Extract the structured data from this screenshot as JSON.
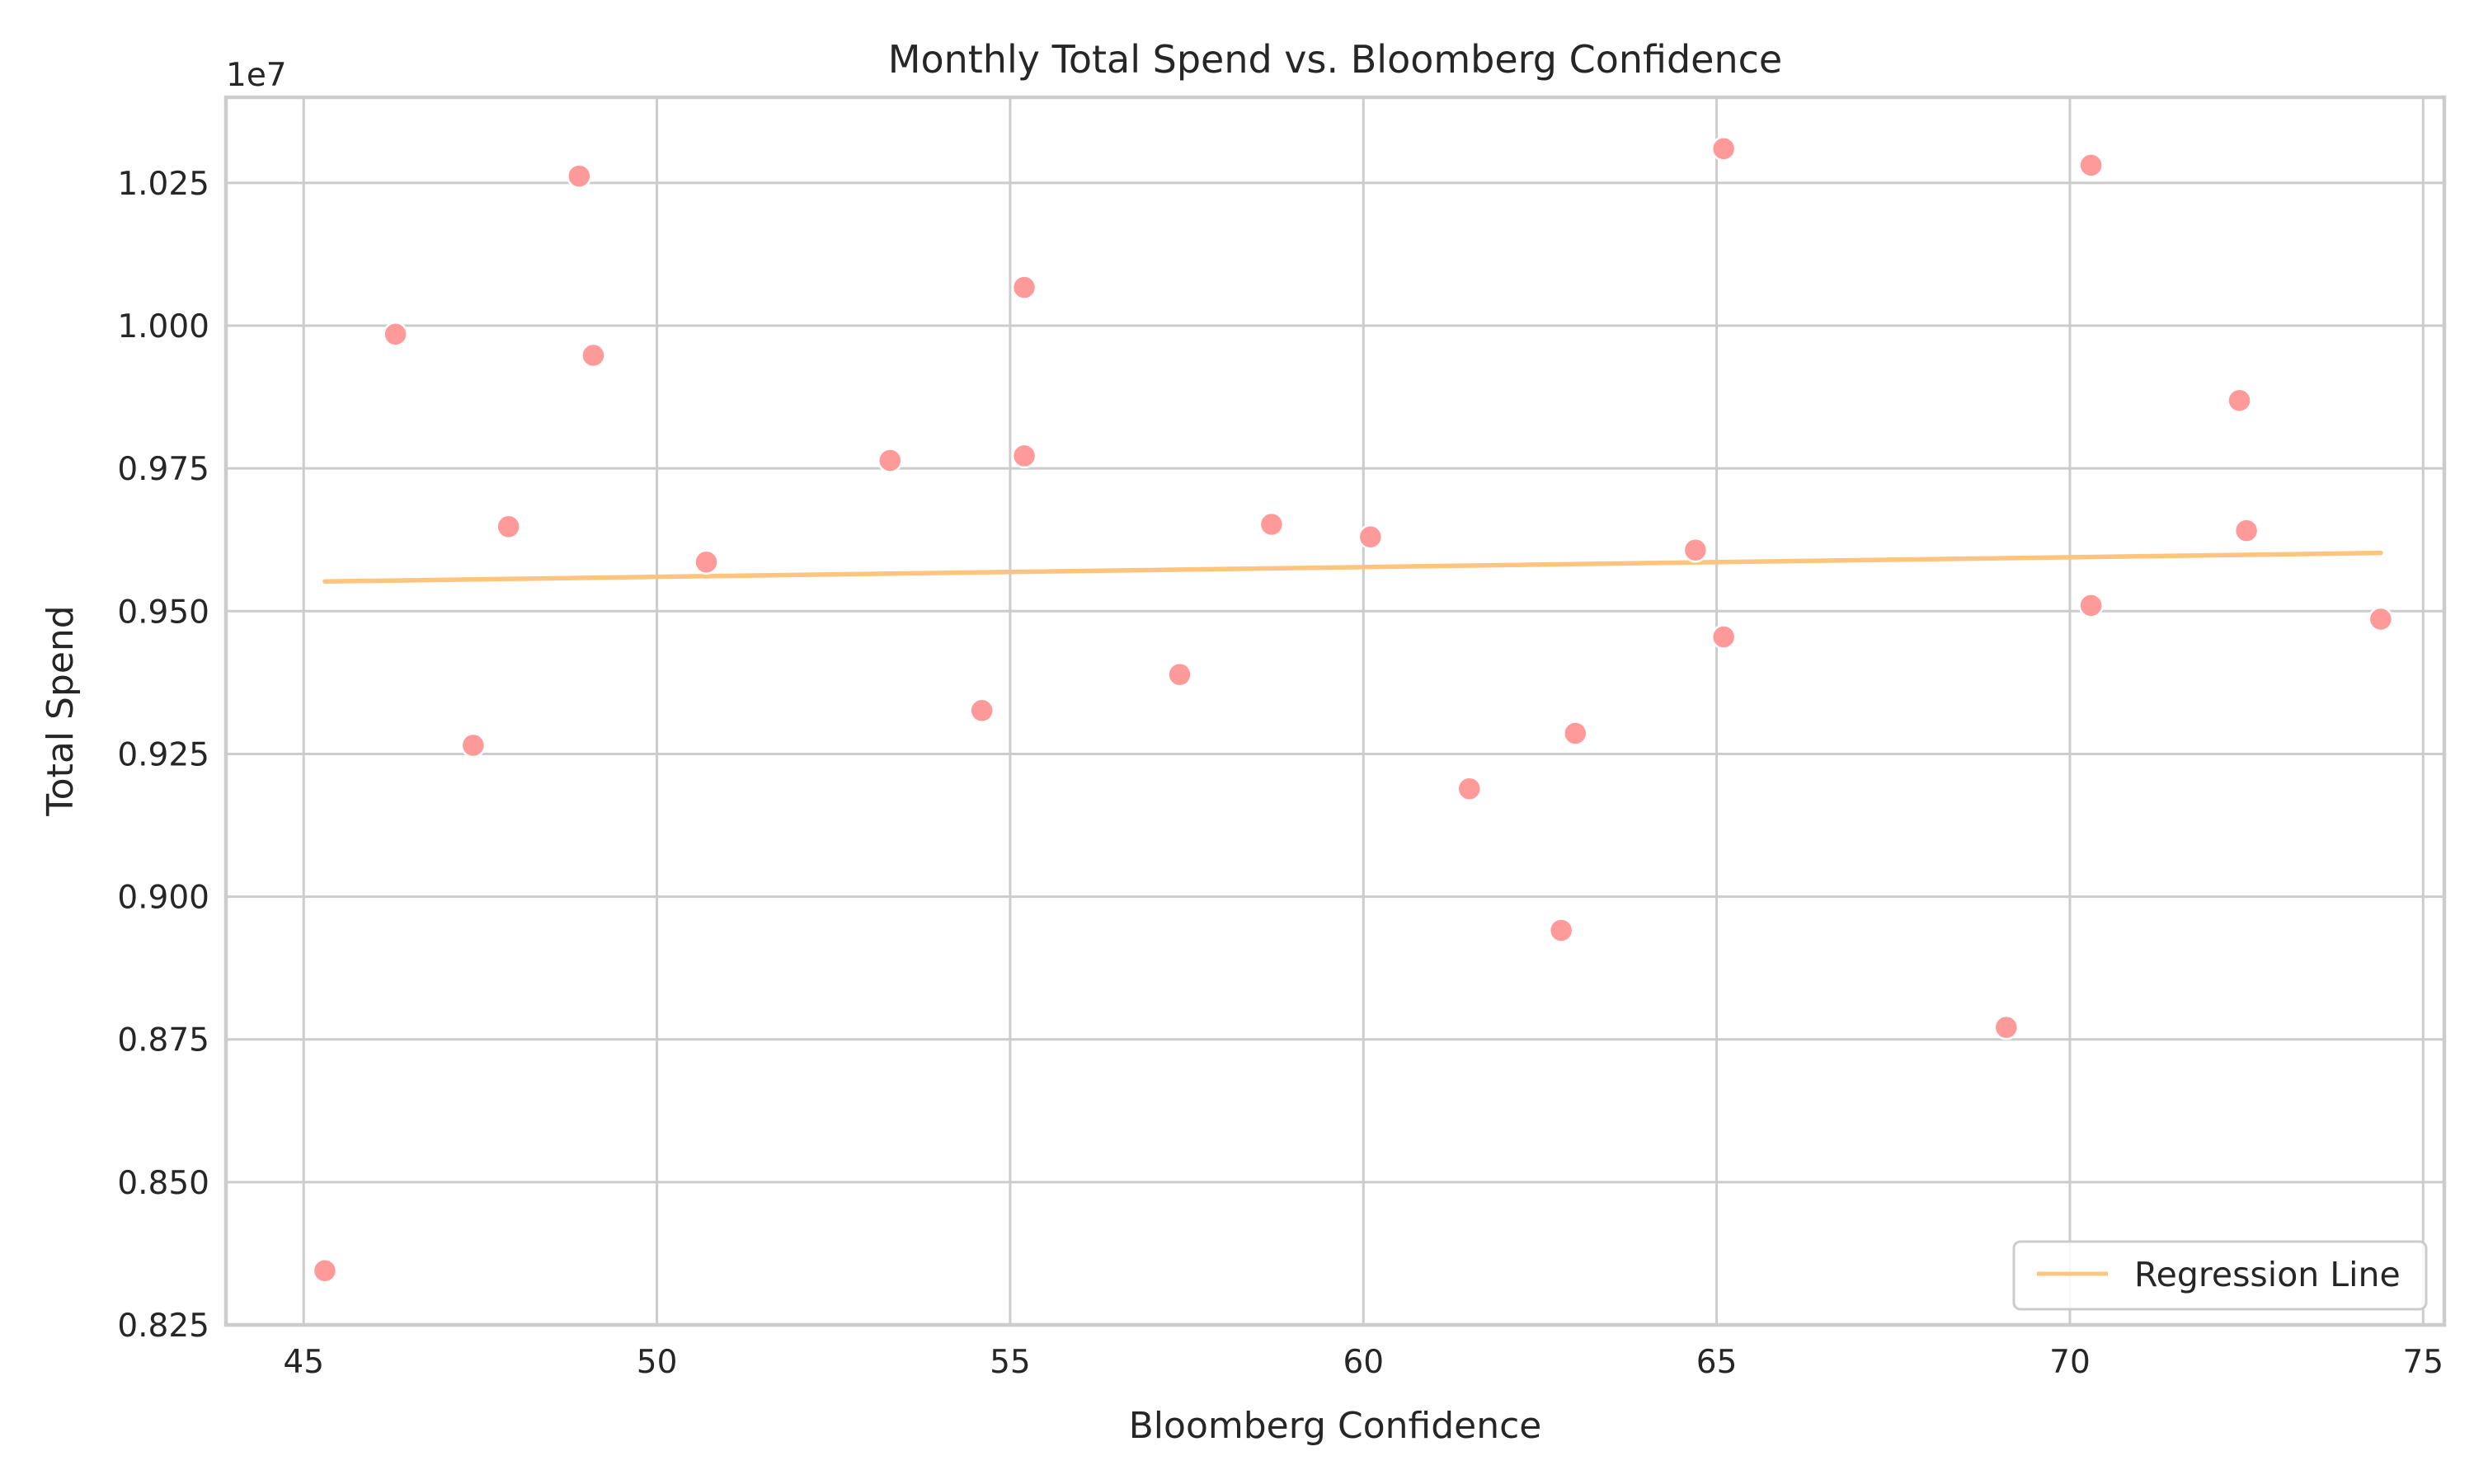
{
  "chart_data": {
    "type": "scatter",
    "title": "Monthly Total Spend vs. Bloomberg Confidence",
    "xlabel": "Bloomberg Confidence",
    "ylabel": "Total Spend",
    "y_offset_label": "1e7",
    "xlim": [
      43.9,
      75.3
    ],
    "ylim": [
      0.825,
      1.04
    ],
    "x_ticks": [
      45,
      50,
      55,
      60,
      65,
      70,
      75
    ],
    "x_tick_labels": [
      "45",
      "50",
      "55",
      "60",
      "65",
      "70",
      "75"
    ],
    "y_ticks": [
      0.825,
      0.85,
      0.875,
      0.9,
      0.925,
      0.95,
      0.975,
      1.0,
      1.025
    ],
    "y_tick_labels": [
      "0.825",
      "0.850",
      "0.875",
      "0.900",
      "0.925",
      "0.950",
      "0.975",
      "1.000",
      "1.025"
    ],
    "grid": true,
    "legend_position": "bottom-right",
    "series": [
      {
        "kind": "scatter",
        "color": "#ff9a9a",
        "points": [
          {
            "x": 45.3,
            "y": 0.8345
          },
          {
            "x": 46.3,
            "y": 0.9985
          },
          {
            "x": 47.4,
            "y": 0.9265
          },
          {
            "x": 47.9,
            "y": 0.9648
          },
          {
            "x": 48.9,
            "y": 1.0262
          },
          {
            "x": 49.1,
            "y": 0.9948
          },
          {
            "x": 50.7,
            "y": 0.9586
          },
          {
            "x": 53.3,
            "y": 0.9764
          },
          {
            "x": 54.6,
            "y": 0.9326
          },
          {
            "x": 55.2,
            "y": 0.9772
          },
          {
            "x": 55.2,
            "y": 1.0067
          },
          {
            "x": 57.4,
            "y": 0.9389
          },
          {
            "x": 58.7,
            "y": 0.9652
          },
          {
            "x": 60.1,
            "y": 0.963
          },
          {
            "x": 61.5,
            "y": 0.9189
          },
          {
            "x": 62.8,
            "y": 0.8941
          },
          {
            "x": 63.0,
            "y": 0.9286
          },
          {
            "x": 64.7,
            "y": 0.9607
          },
          {
            "x": 65.1,
            "y": 1.031
          },
          {
            "x": 65.1,
            "y": 0.9455
          },
          {
            "x": 69.1,
            "y": 0.8771
          },
          {
            "x": 70.3,
            "y": 0.951
          },
          {
            "x": 70.3,
            "y": 1.0281
          },
          {
            "x": 72.4,
            "y": 0.9869
          },
          {
            "x": 72.5,
            "y": 0.9641
          },
          {
            "x": 74.4,
            "y": 0.9486
          }
        ]
      },
      {
        "kind": "line",
        "name": "Regression Line",
        "color": "#ffc47e",
        "points": [
          {
            "x": 45.3,
            "y": 0.9552
          },
          {
            "x": 74.4,
            "y": 0.9602
          }
        ]
      }
    ]
  }
}
